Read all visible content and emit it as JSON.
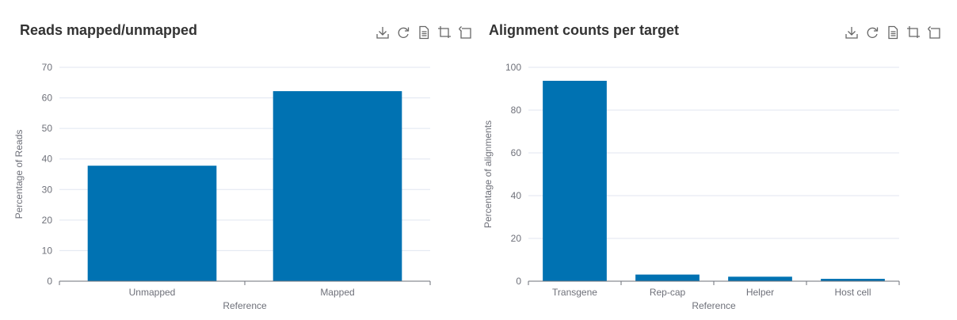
{
  "toolbox": {
    "icons": [
      "download-icon",
      "refresh-icon",
      "data-view-icon",
      "zoom-icon",
      "zoom-reset-icon"
    ]
  },
  "colors": {
    "bar": "#0072b2",
    "grid": "#e0e6f1",
    "axis_line": "#6e7079",
    "text": "#6e7079",
    "title": "#333333"
  },
  "chart_data": [
    {
      "type": "bar",
      "title": "Reads mapped/unmapped",
      "xlabel": "Reference",
      "ylabel": "Percentage of Reads",
      "categories": [
        "Unmapped",
        "Mapped"
      ],
      "values": [
        37.8,
        62.2
      ],
      "ylim": [
        0,
        70
      ],
      "yticks": [
        "0",
        "10",
        "20",
        "30",
        "40",
        "50",
        "60",
        "70"
      ],
      "grid": true,
      "legend": "none"
    },
    {
      "type": "bar",
      "title": "Alignment counts per target",
      "xlabel": "Reference",
      "ylabel": "Percentage of alignments",
      "categories": [
        "Transgene",
        "Rep-cap",
        "Helper",
        "Host cell"
      ],
      "values": [
        93.7,
        3.1,
        2.1,
        1.1
      ],
      "ylim": [
        0,
        100
      ],
      "yticks": [
        "0",
        "20",
        "40",
        "60",
        "80",
        "100"
      ],
      "grid": true,
      "legend": "none"
    }
  ]
}
